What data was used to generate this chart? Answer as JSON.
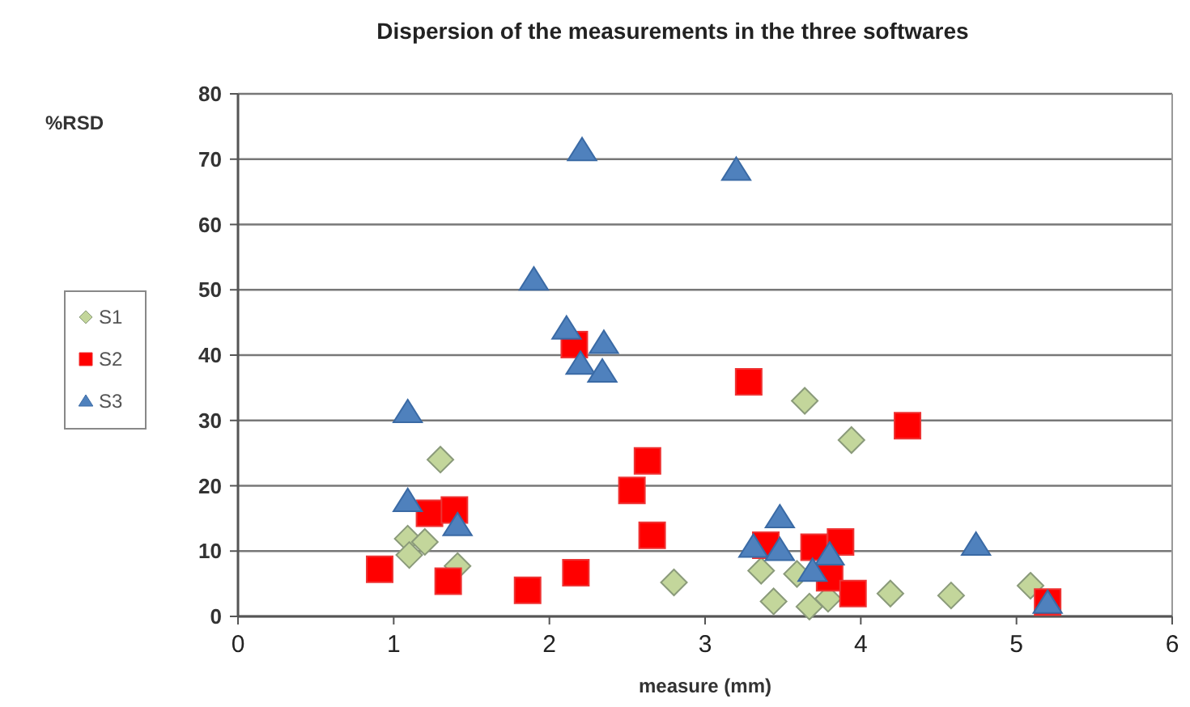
{
  "chart_data": {
    "type": "scatter",
    "title": "Dispersion of the measurements in the three softwares",
    "xlabel": "measure (mm)",
    "ylabel": "%RSD",
    "xlim": [
      0,
      6
    ],
    "xticks": [
      0,
      1,
      2,
      3,
      4,
      5,
      6
    ],
    "ylim": [
      0,
      80
    ],
    "yticks": [
      0,
      10,
      20,
      30,
      40,
      50,
      60,
      70,
      80
    ],
    "grid": "y",
    "legend": "left",
    "series": [
      {
        "name": "S1",
        "color": "#c3d69b",
        "marker": "diamond",
        "x": [
          1.3,
          1.09,
          1.2,
          1.1,
          1.41,
          2.8,
          3.36,
          3.44,
          3.59,
          3.67,
          3.79,
          3.64,
          3.94,
          4.19,
          4.58,
          5.09
        ],
        "values": [
          24,
          11.9,
          11.4,
          9.4,
          7.7,
          5.2,
          7,
          2.3,
          6.5,
          1.5,
          2.7,
          33,
          27,
          3.5,
          3.2,
          4.7
        ]
      },
      {
        "name": "S2",
        "color": "#ff0000",
        "marker": "square",
        "x": [
          0.91,
          1.23,
          1.39,
          1.35,
          1.86,
          2.17,
          2.16,
          2.63,
          2.53,
          2.66,
          3.28,
          4.3,
          3.39,
          3.7,
          3.87,
          3.8,
          3.95,
          5.2
        ],
        "values": [
          7.2,
          15.8,
          16.3,
          5.4,
          4,
          6.7,
          41.6,
          23.8,
          19.3,
          12.4,
          35.9,
          29.2,
          10.9,
          10.6,
          11.4,
          5.9,
          3.5,
          2.2
        ]
      },
      {
        "name": "S3",
        "color": "#4f81bd",
        "marker": "triangle",
        "x": [
          2.21,
          1.9,
          2.11,
          2.35,
          2.2,
          2.34,
          1.09,
          1.09,
          1.41,
          3.2,
          3.48,
          3.31,
          3.48,
          3.8,
          3.69,
          4.74,
          5.2
        ],
        "values": [
          71.3,
          51.5,
          44,
          41.8,
          38.6,
          37.4,
          31.2,
          17.6,
          13.9,
          68.3,
          15.1,
          10.6,
          10.1,
          9.4,
          6.9,
          10.9,
          2
        ]
      }
    ]
  }
}
